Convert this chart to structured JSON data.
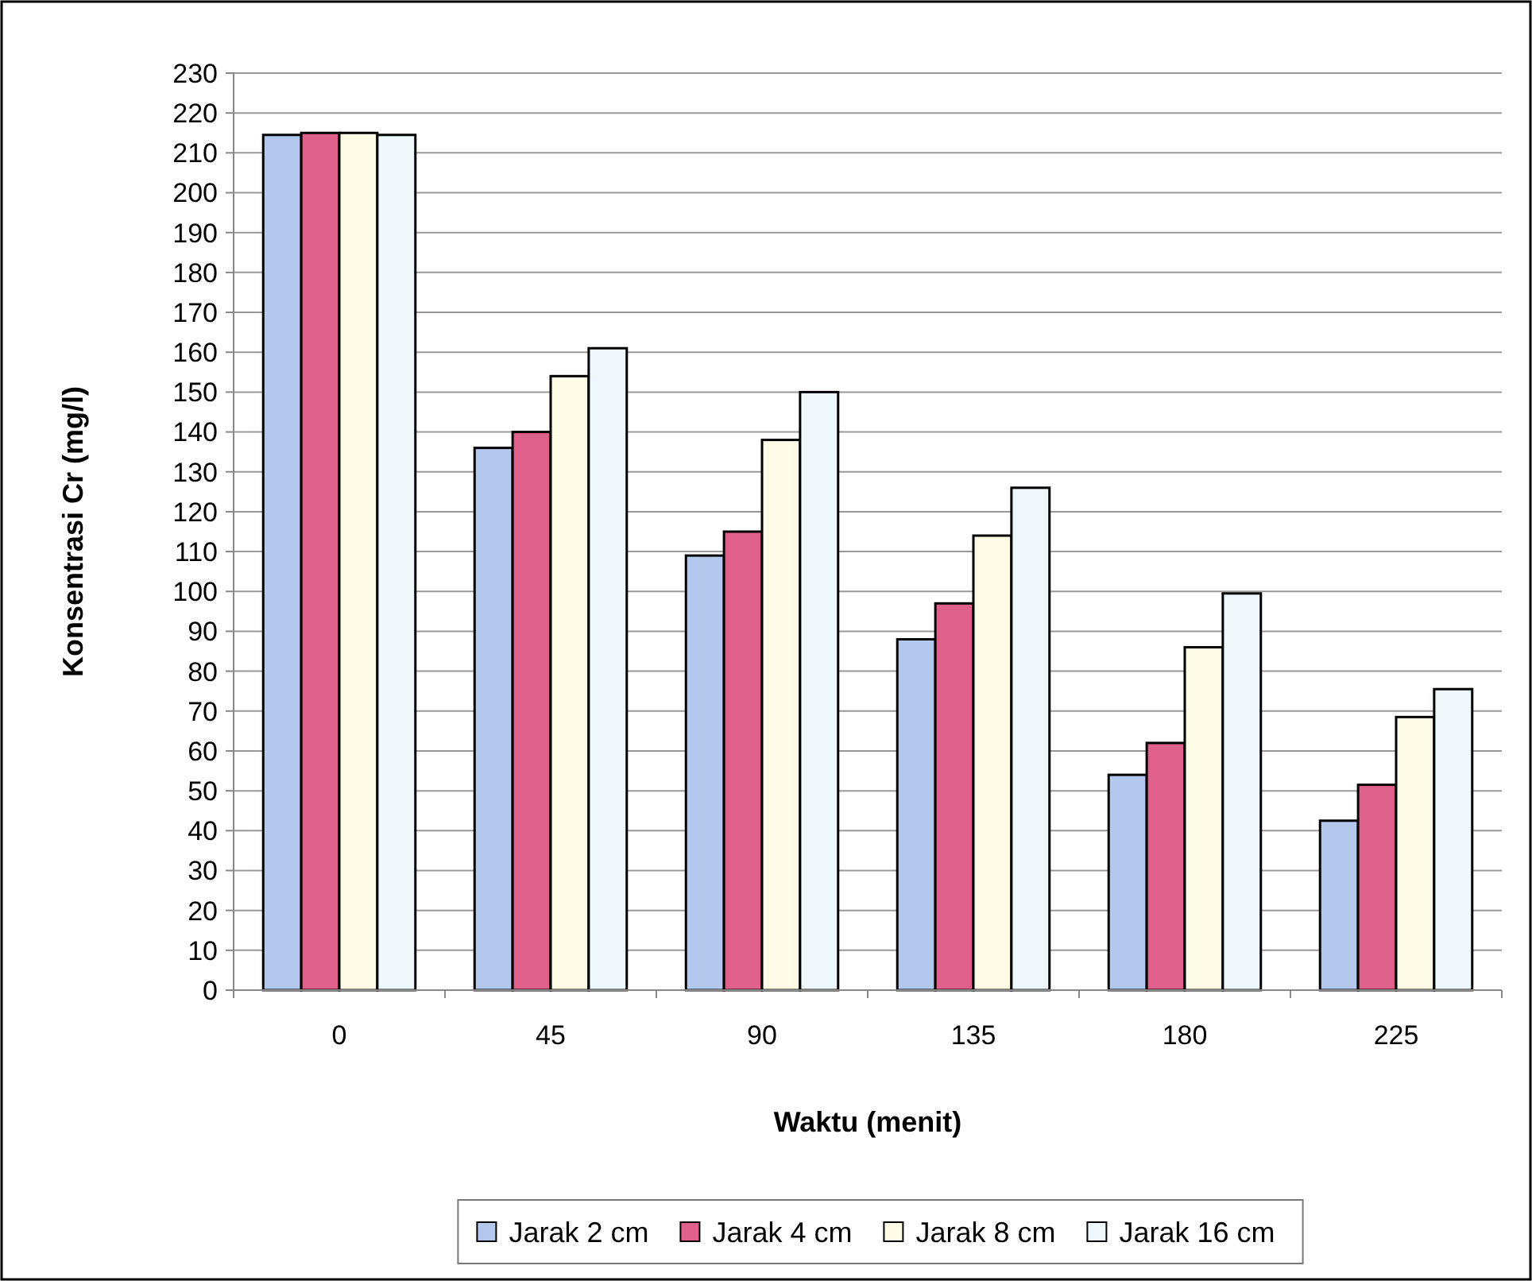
{
  "chart_data": {
    "type": "bar",
    "xlabel": "Waktu (menit)",
    "ylabel": "Konsentrasi Cr (mg/l)",
    "categories": [
      "0",
      "45",
      "90",
      "135",
      "180",
      "225"
    ],
    "series": [
      {
        "name": "Jarak 2 cm",
        "color": "#b4c7ec",
        "values": [
          214.5,
          136,
          109,
          88,
          54,
          42.5
        ]
      },
      {
        "name": "Jarak 4 cm",
        "color": "#e0608c",
        "values": [
          215,
          140,
          115,
          97,
          62,
          51.5
        ]
      },
      {
        "name": "Jarak 8 cm",
        "color": "#fffbe6",
        "values": [
          215,
          154,
          138,
          114,
          86,
          68.5
        ]
      },
      {
        "name": "Jarak 16 cm",
        "color": "#eef8fc",
        "values": [
          214.5,
          161,
          150,
          126,
          99.5,
          75.5
        ]
      }
    ],
    "ylim": [
      0,
      230
    ],
    "yticks": [
      0,
      10,
      20,
      30,
      40,
      50,
      60,
      70,
      80,
      90,
      100,
      110,
      120,
      130,
      140,
      150,
      160,
      170,
      180,
      190,
      200,
      210,
      220,
      230
    ],
    "grid": "y",
    "legend": "bottom"
  }
}
